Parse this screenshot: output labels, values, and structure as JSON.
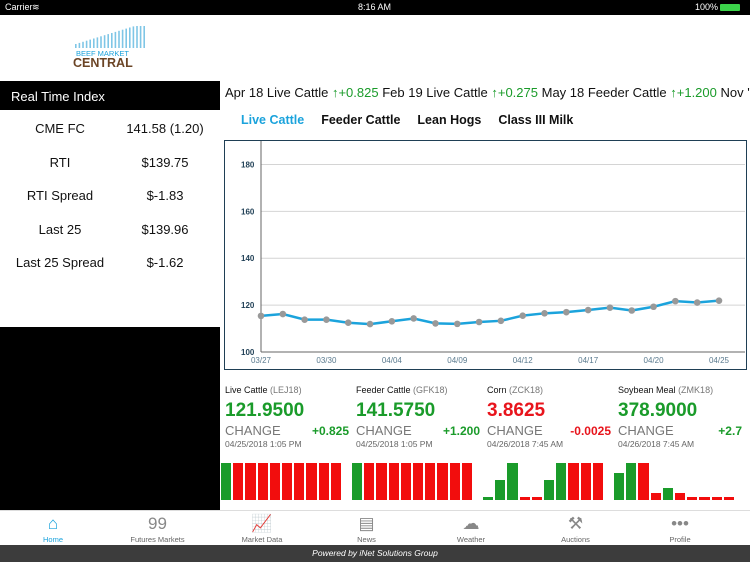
{
  "status": {
    "carrier": "Carrier",
    "time": "8:16 AM",
    "battery": "100%"
  },
  "logo": {
    "line1": "BEEF MARKET",
    "line2": "CENTRAL"
  },
  "rti": {
    "title": "Real Time Index",
    "rows": [
      {
        "label": "CME FC",
        "value": "141.58 (1.20)"
      },
      {
        "label": "RTI",
        "value": "$139.75"
      },
      {
        "label": "RTI Spread",
        "value": "$-1.83"
      },
      {
        "label": "Last 25",
        "value": "$139.96"
      },
      {
        "label": "Last 25 Spread",
        "value": "$-1.62"
      }
    ]
  },
  "ticker": [
    {
      "name": "Apr 18 Live Cattle",
      "change": "+0.825"
    },
    {
      "name": "Feb 19 Live Cattle",
      "change": "+0.275"
    },
    {
      "name": "May 18 Feeder Cattle",
      "change": "+1.200"
    },
    {
      "name": "Nov '",
      "change": ""
    }
  ],
  "tabs": [
    "Live Cattle",
    "Feeder Cattle",
    "Lean Hogs",
    "Class III Milk"
  ],
  "active_tab": 0,
  "chart_data": {
    "type": "line",
    "series_color": "#1ba3dc",
    "marker_color": "#999999",
    "ylim": [
      100,
      190
    ],
    "yticks": [
      100,
      120,
      140,
      160,
      180
    ],
    "grid": true,
    "xtick_labels": [
      {
        "i": 0,
        "label": "03/27"
      },
      {
        "i": 3,
        "label": "03/30"
      },
      {
        "i": 6,
        "label": "04/04"
      },
      {
        "i": 9,
        "label": "04/09"
      },
      {
        "i": 12,
        "label": "04/12"
      },
      {
        "i": 15,
        "label": "04/17"
      },
      {
        "i": 18,
        "label": "04/20"
      },
      {
        "i": 21,
        "label": "04/25"
      }
    ],
    "values": [
      115.4,
      116.2,
      113.8,
      113.8,
      112.5,
      111.9,
      113.1,
      114.3,
      112.2,
      112.0,
      112.8,
      113.3,
      115.5,
      116.5,
      117.0,
      117.9,
      118.9,
      117.7,
      119.3,
      121.7,
      121.1,
      121.9
    ]
  },
  "quotes": [
    {
      "name": "Live Cattle",
      "symbol": "(LEJ18)",
      "price": "121.9500",
      "change_label": "CHANGE",
      "change": "+0.825",
      "dir": "up",
      "date": "04/25/2018 1:05 PM",
      "spark": [
        [
          1,
          "g"
        ],
        [
          1,
          "r"
        ],
        [
          1,
          "r"
        ],
        [
          1,
          "r"
        ],
        [
          1,
          "r"
        ],
        [
          1,
          "r"
        ],
        [
          1,
          "r"
        ],
        [
          1,
          "r"
        ],
        [
          1,
          "r"
        ],
        [
          1,
          "r"
        ]
      ]
    },
    {
      "name": "Feeder Cattle",
      "symbol": "(GFK18)",
      "price": "141.5750",
      "change_label": "CHANGE",
      "change": "+1.200",
      "dir": "up",
      "date": "04/25/2018 1:05 PM",
      "spark": [
        [
          1,
          "g"
        ],
        [
          1,
          "r"
        ],
        [
          1,
          "r"
        ],
        [
          1,
          "r"
        ],
        [
          1,
          "r"
        ],
        [
          1,
          "r"
        ],
        [
          1,
          "r"
        ],
        [
          1,
          "r"
        ],
        [
          1,
          "r"
        ],
        [
          1,
          "r"
        ]
      ]
    },
    {
      "name": "Corn",
      "symbol": "(ZCK18)",
      "price": "3.8625",
      "change_label": "CHANGE",
      "change": "-0.0025",
      "dir": "down",
      "date": "04/26/2018 7:45 AM",
      "spark": [
        [
          0.1,
          "g"
        ],
        [
          0.55,
          "g"
        ],
        [
          1,
          "g"
        ],
        [
          0.1,
          "r"
        ],
        [
          0.1,
          "r"
        ],
        [
          0.55,
          "g"
        ],
        [
          1,
          "g"
        ],
        [
          1,
          "r"
        ],
        [
          1,
          "r"
        ],
        [
          1,
          "r"
        ]
      ]
    },
    {
      "name": "Soybean Meal",
      "symbol": "(ZMK18)",
      "price": "378.9000",
      "change_label": "CHANGE",
      "change": "+2.7",
      "dir": "up",
      "date": "04/26/2018 7:45 AM",
      "spark": [
        [
          0.75,
          "g"
        ],
        [
          1,
          "g"
        ],
        [
          1,
          "r"
        ],
        [
          0.22,
          "r"
        ],
        [
          0.35,
          "g"
        ],
        [
          0.22,
          "r"
        ],
        [
          0.1,
          "r"
        ],
        [
          0.1,
          "r"
        ],
        [
          0.1,
          "r"
        ],
        [
          0.1,
          "r"
        ]
      ]
    }
  ],
  "tabbar": [
    {
      "label": "Home",
      "icon": "home-icon",
      "glyph": "⌂"
    },
    {
      "label": "Futures Markets",
      "icon": "quote-icon",
      "glyph": "99"
    },
    {
      "label": "Market Data",
      "icon": "chart-icon",
      "glyph": "📈"
    },
    {
      "label": "News",
      "icon": "newspaper-icon",
      "glyph": "▤"
    },
    {
      "label": "Weather",
      "icon": "weather-icon",
      "glyph": "☁"
    },
    {
      "label": "Auctions",
      "icon": "gavel-icon",
      "glyph": "⚒"
    },
    {
      "label": "Profile",
      "icon": "more-icon",
      "glyph": "•••"
    }
  ],
  "footer": "Powered by iNet Solutions Group",
  "colors": {
    "accent": "#1ba3dc",
    "up": "#1a9b2a",
    "down": "#e8141c"
  }
}
